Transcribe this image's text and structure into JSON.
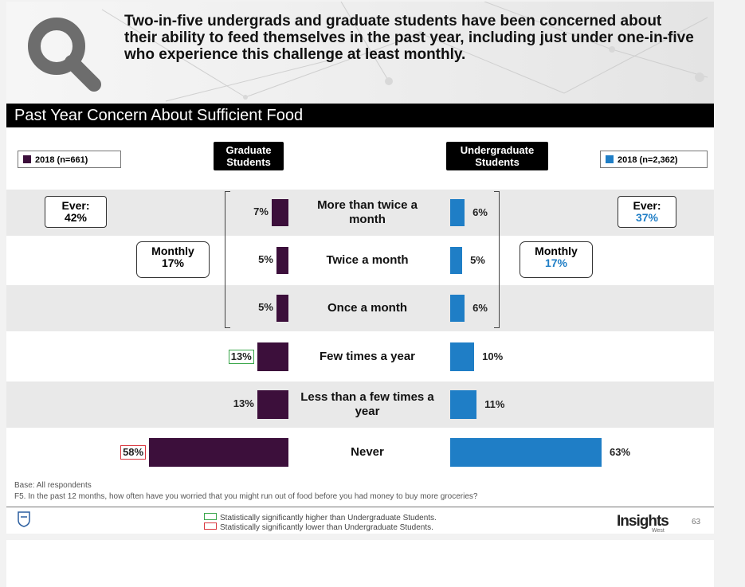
{
  "headline": "Two-in-five undergrads and graduate students have been concerned about their ability to feed themselves in the past year, including just under one-in-five who experience this challenge at least monthly.",
  "colors": {
    "graduate": "#3c0f3b",
    "undergraduate": "#1f7ec6",
    "sig_higher": "#3aa64a",
    "sig_lower": "#d9363e"
  },
  "chart_data": {
    "type": "bar",
    "title": "Past Year Concern About Sufficient Food",
    "groups": {
      "graduate": "Graduate Students",
      "undergraduate": "Undergraduate Students"
    },
    "categories": [
      "More than twice a month",
      "Twice a month",
      "Once a month",
      "Few times a year",
      "Less than a few times a year",
      "Never"
    ],
    "series": [
      {
        "name": "2018 (n=661)",
        "group": "graduate",
        "values": [
          7,
          5,
          5,
          13,
          13,
          58
        ],
        "labels": [
          "7%",
          "5%",
          "5%",
          "13%",
          "13%",
          "58%"
        ],
        "significance": [
          "",
          "",
          "",
          "higher",
          "",
          "lower"
        ]
      },
      {
        "name": "2018 (n=2,362)",
        "group": "undergraduate",
        "values": [
          6,
          5,
          6,
          10,
          11,
          63
        ],
        "labels": [
          "6%",
          "5%",
          "6%",
          "10%",
          "11%",
          "63%"
        ],
        "significance": [
          "",
          "",
          "",
          "",
          "",
          ""
        ]
      }
    ],
    "callouts": {
      "graduate": {
        "ever_label": "Ever:",
        "ever_value": "42%",
        "monthly_label": "Monthly",
        "monthly_value": "17%"
      },
      "undergraduate": {
        "ever_label": "Ever:",
        "ever_value": "37%",
        "monthly_label": "Monthly",
        "monthly_value": "17%"
      }
    },
    "xlim": [
      0,
      63
    ]
  },
  "footer": {
    "base": "Base: All respondents",
    "question": "F5. In the past 12 months, how often have you worried that you might run out of food before you had money to buy more groceries?",
    "sig_higher": "Statistically significantly higher than Undergraduate Students.",
    "sig_lower": "Statistically significantly lower than Undergraduate Students.",
    "brand": "Insights",
    "brand_sub": "West",
    "page_number": "63"
  },
  "icons": {
    "header": "magnifier-icon",
    "crest": "university-crest-icon"
  }
}
